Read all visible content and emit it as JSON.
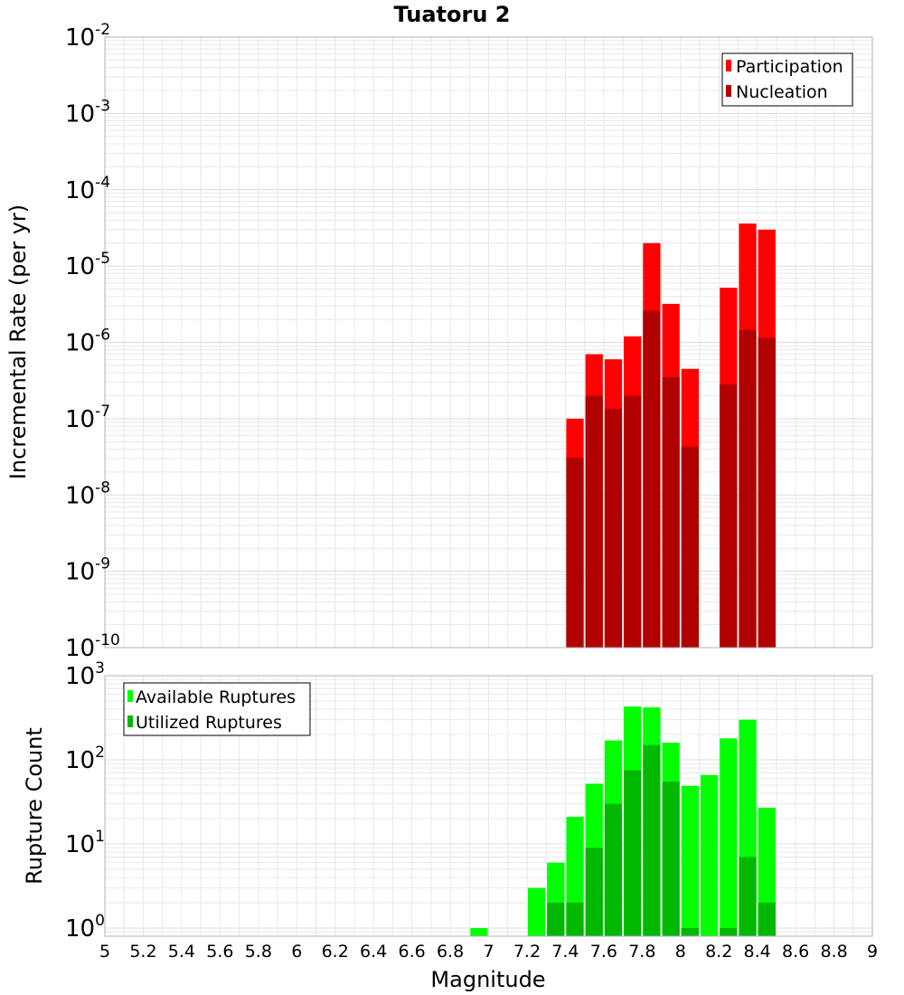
{
  "title": "Tuatoru 2",
  "xlabel": "Magnitude",
  "colors": {
    "participation": "#ff0000",
    "nucleation": "#b00000",
    "available": "#00ff00",
    "utilized": "#00b800",
    "grid": "#e8e8e8",
    "frame": "#b0b0b0"
  },
  "x_ticks": [
    "5",
    "5.2",
    "5.4",
    "5.6",
    "5.8",
    "6",
    "6.2",
    "6.4",
    "6.6",
    "6.8",
    "7",
    "7.2",
    "7.4",
    "7.6",
    "7.8",
    "8",
    "8.2",
    "8.4",
    "8.6",
    "8.8",
    "9"
  ],
  "top_y_ticks": [
    {
      "base": "10",
      "exp": "-2"
    },
    {
      "base": "10",
      "exp": "-3"
    },
    {
      "base": "10",
      "exp": "-4"
    },
    {
      "base": "10",
      "exp": "-5"
    },
    {
      "base": "10",
      "exp": "-6"
    },
    {
      "base": "10",
      "exp": "-7"
    },
    {
      "base": "10",
      "exp": "-8"
    },
    {
      "base": "10",
      "exp": "-9"
    },
    {
      "base": "10",
      "exp": "-10"
    }
  ],
  "bottom_y_ticks": [
    {
      "base": "10",
      "exp": "3"
    },
    {
      "base": "10",
      "exp": "2"
    },
    {
      "base": "10",
      "exp": "1"
    },
    {
      "base": "10",
      "exp": "0"
    }
  ],
  "chart_data": [
    {
      "type": "bar",
      "title": "Tuatoru 2",
      "xlabel": "Magnitude",
      "ylabel": "Incremental Rate (per yr)",
      "yscale": "log",
      "xlim": [
        5,
        9
      ],
      "ylim": [
        1e-10,
        0.01
      ],
      "bin_width": 0.1,
      "grid": true,
      "legend_position": "top-right",
      "series": [
        {
          "name": "Participation",
          "x": [
            7.45,
            7.55,
            7.65,
            7.75,
            7.85,
            7.95,
            8.05,
            8.25,
            8.35,
            8.45
          ],
          "values": [
            1e-07,
            7e-07,
            6e-07,
            1.2e-06,
            2e-05,
            3.2e-06,
            4.5e-07,
            5.2e-06,
            3.6e-05,
            3e-05
          ]
        },
        {
          "name": "Nucleation",
          "x": [
            7.45,
            7.55,
            7.65,
            7.75,
            7.85,
            7.95,
            8.05,
            8.25,
            8.35,
            8.45
          ],
          "values": [
            3.1e-08,
            2e-07,
            1.35e-07,
            2e-07,
            2.6e-06,
            3.5e-07,
            4.3e-08,
            2.8e-07,
            1.45e-06,
            1.15e-06
          ]
        }
      ]
    },
    {
      "type": "bar",
      "xlabel": "Magnitude",
      "ylabel": "Rupture Count",
      "yscale": "log",
      "xlim": [
        5,
        9
      ],
      "ylim": [
        0.8,
        1000
      ],
      "bin_width": 0.1,
      "grid": true,
      "legend_position": "top-left",
      "series": [
        {
          "name": "Available Ruptures",
          "x": [
            6.95,
            7.25,
            7.35,
            7.45,
            7.55,
            7.65,
            7.75,
            7.85,
            7.95,
            8.05,
            8.15,
            8.25,
            8.35,
            8.45
          ],
          "values": [
            1,
            3,
            6,
            21,
            52,
            170,
            430,
            420,
            160,
            49,
            66,
            180,
            300,
            27
          ]
        },
        {
          "name": "Utilized Ruptures",
          "x": [
            7.35,
            7.45,
            7.55,
            7.65,
            7.75,
            7.85,
            7.95,
            8.05,
            8.25,
            8.35,
            8.45
          ],
          "values": [
            2,
            2,
            9,
            30,
            75,
            150,
            55,
            1,
            1,
            7,
            2
          ]
        }
      ]
    }
  ]
}
